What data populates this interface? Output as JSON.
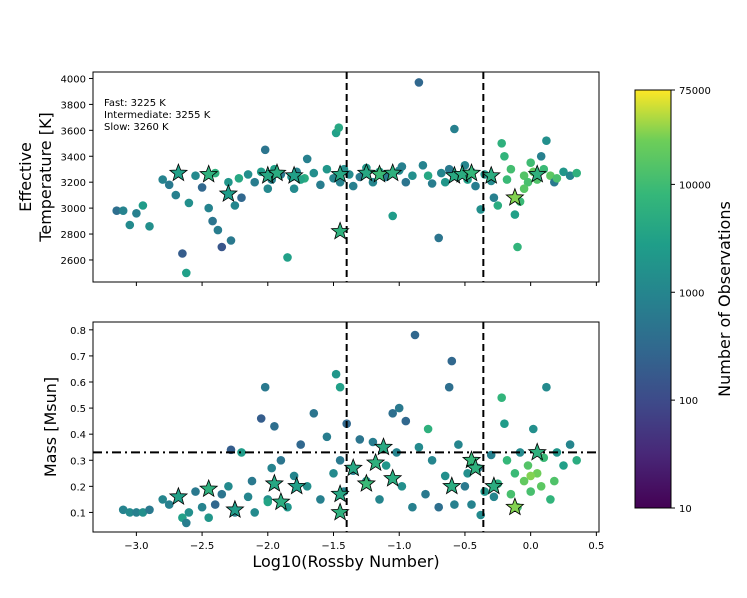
{
  "chart_data": [
    {
      "type": "scatter",
      "panel": "top",
      "ylabel": "Effective\nTemperature [K]",
      "ylim": [
        2430,
        4050
      ],
      "xlim": [
        -3.33,
        0.52
      ],
      "yticks": [
        2600,
        2800,
        3000,
        3200,
        3400,
        3600,
        3800,
        4000
      ],
      "xticks": [
        -3.0,
        -2.5,
        -2.0,
        -1.5,
        -1.0,
        -0.5,
        0.0,
        0.5
      ],
      "vlines": [
        -1.4,
        -0.36
      ],
      "annotation": [
        "Fast: 3225 K",
        "Intermediate: 3255 K",
        "Slow: 3260 K"
      ],
      "points": [
        [
          -3.15,
          2980,
          400
        ],
        [
          -3.1,
          2980,
          900
        ],
        [
          -3.05,
          2870,
          1200
        ],
        [
          -3.0,
          2960,
          800
        ],
        [
          -2.95,
          3020,
          2500
        ],
        [
          -2.9,
          2860,
          1500
        ],
        [
          -2.8,
          3220,
          900
        ],
        [
          -2.75,
          3180,
          600
        ],
        [
          -2.7,
          3100,
          800
        ],
        [
          -2.65,
          2650,
          200
        ],
        [
          -2.62,
          2500,
          3000
        ],
        [
          -2.6,
          3040,
          1500
        ],
        [
          -2.55,
          3250,
          1200
        ],
        [
          -2.5,
          3160,
          300
        ],
        [
          -2.45,
          3000,
          900
        ],
        [
          -2.42,
          2900,
          500
        ],
        [
          -2.38,
          2830,
          700
        ],
        [
          -2.35,
          2700,
          150
        ],
        [
          -2.3,
          3200,
          2000
        ],
        [
          -2.28,
          2750,
          600
        ],
        [
          -2.25,
          3020,
          1000
        ],
        [
          -2.22,
          3230,
          4000
        ],
        [
          -2.2,
          3080,
          300
        ],
        [
          -2.15,
          3260,
          1500
        ],
        [
          -2.1,
          3200,
          700
        ],
        [
          -2.05,
          3280,
          2500
        ],
        [
          -2.02,
          3450,
          500
        ],
        [
          -2.0,
          3150,
          1100
        ],
        [
          -1.97,
          3220,
          900
        ],
        [
          -1.95,
          3300,
          3000
        ],
        [
          -1.9,
          3260,
          600
        ],
        [
          -1.85,
          2620,
          3000
        ],
        [
          -1.82,
          3240,
          1800
        ],
        [
          -1.8,
          3150,
          1200
        ],
        [
          -1.78,
          3280,
          900
        ],
        [
          -1.72,
          3230,
          5000
        ],
        [
          -1.7,
          3380,
          800
        ],
        [
          -1.65,
          3270,
          1400
        ],
        [
          -1.6,
          3180,
          700
        ],
        [
          -1.55,
          3300,
          2000
        ],
        [
          -1.5,
          3230,
          1000
        ],
        [
          -1.48,
          3580,
          3000
        ],
        [
          -1.46,
          3620,
          4000
        ],
        [
          -1.45,
          3200,
          900
        ],
        [
          -1.42,
          3300,
          1500
        ],
        [
          -1.38,
          3260,
          1200
        ],
        [
          -1.35,
          3170,
          800
        ],
        [
          -1.3,
          3240,
          600
        ],
        [
          -1.25,
          3310,
          2000
        ],
        [
          -1.2,
          3200,
          1000
        ],
        [
          -1.15,
          3280,
          3000
        ],
        [
          -1.1,
          3240,
          700
        ],
        [
          -1.05,
          2940,
          2500
        ],
        [
          -1.0,
          3290,
          1200
        ],
        [
          -0.98,
          3320,
          800
        ],
        [
          -0.95,
          3200,
          500
        ],
        [
          -0.9,
          3250,
          1500
        ],
        [
          -0.85,
          3970,
          300
        ],
        [
          -0.82,
          3330,
          900
        ],
        [
          -0.78,
          3250,
          4000
        ],
        [
          -0.75,
          3190,
          700
        ],
        [
          -0.7,
          2770,
          500
        ],
        [
          -0.68,
          3270,
          1000
        ],
        [
          -0.65,
          3200,
          2000
        ],
        [
          -0.62,
          3300,
          600
        ],
        [
          -0.58,
          3610,
          800
        ],
        [
          -0.55,
          3250,
          1300
        ],
        [
          -0.5,
          3330,
          1000
        ],
        [
          -0.48,
          3220,
          3000
        ],
        [
          -0.45,
          3280,
          900
        ],
        [
          -0.42,
          3170,
          700
        ],
        [
          -0.38,
          2990,
          1500
        ],
        [
          -0.35,
          3260,
          2000
        ],
        [
          -0.3,
          3210,
          1200
        ],
        [
          -0.28,
          3080,
          800
        ],
        [
          -0.25,
          3020,
          5000
        ],
        [
          -0.22,
          3500,
          6000
        ],
        [
          -0.2,
          3400,
          7000
        ],
        [
          -0.18,
          3220,
          9000
        ],
        [
          -0.15,
          3300,
          11000
        ],
        [
          -0.12,
          2950,
          3000
        ],
        [
          -0.1,
          2700,
          7000
        ],
        [
          -0.08,
          3050,
          9000
        ],
        [
          -0.05,
          3250,
          15000
        ],
        [
          -0.02,
          3200,
          12000
        ],
        [
          0.0,
          3350,
          10000
        ],
        [
          0.02,
          3280,
          20000
        ],
        [
          0.05,
          3220,
          14000
        ],
        [
          0.08,
          3400,
          800
        ],
        [
          0.1,
          3300,
          9000
        ],
        [
          0.12,
          3520,
          1500
        ],
        [
          0.15,
          3250,
          18000
        ],
        [
          0.18,
          3200,
          600
        ],
        [
          0.2,
          3230,
          12000
        ],
        [
          0.25,
          3280,
          2000
        ],
        [
          0.3,
          3250,
          1000
        ],
        [
          0.35,
          3270,
          6000
        ],
        [
          -1.75,
          3220,
          3500
        ],
        [
          -2.4,
          3270,
          6000
        ],
        [
          -0.05,
          3150,
          16000
        ]
      ],
      "stars": [
        [
          -2.68,
          3270,
          3000
        ],
        [
          -2.45,
          3260,
          6000
        ],
        [
          -2.3,
          3110,
          2500
        ],
        [
          -2.0,
          3250,
          4000
        ],
        [
          -1.93,
          3270,
          5000
        ],
        [
          -1.8,
          3250,
          3000
        ],
        [
          -1.45,
          3260,
          4000
        ],
        [
          -1.45,
          2820,
          6000
        ],
        [
          -1.25,
          3270,
          4000
        ],
        [
          -1.15,
          3260,
          9000
        ],
        [
          -1.05,
          3270,
          6000
        ],
        [
          -0.58,
          3250,
          4500
        ],
        [
          -0.52,
          3260,
          5000
        ],
        [
          -0.45,
          3270,
          8000
        ],
        [
          -0.3,
          3250,
          5000
        ],
        [
          -0.12,
          3080,
          30000
        ],
        [
          0.05,
          3260,
          6000
        ]
      ]
    },
    {
      "type": "scatter",
      "panel": "bottom",
      "ylabel": "Mass [Msun]",
      "xlabel": "Log10(Rossby Number)",
      "ylim": [
        0.025,
        0.83
      ],
      "xlim": [
        -3.33,
        0.52
      ],
      "yticks": [
        0.1,
        0.2,
        0.3,
        0.4,
        0.5,
        0.6,
        0.7,
        0.8
      ],
      "ytick_labels": [
        "0.1",
        "0.2",
        "0.3",
        "0.4",
        "0.5",
        "0.6",
        "0.7",
        "0.8"
      ],
      "xticks": [
        -3.0,
        -2.5,
        -2.0,
        -1.5,
        -1.0,
        -0.5,
        0.0,
        0.5
      ],
      "xtick_labels": [
        "−3.0",
        "−2.5",
        "−2.0",
        "−1.5",
        "−1.0",
        "−0.5",
        "0.0",
        "0.5"
      ],
      "vlines": [
        -1.4,
        -0.36
      ],
      "hline": 0.33,
      "points": [
        [
          -3.1,
          0.11,
          900
        ],
        [
          -3.05,
          0.1,
          1200
        ],
        [
          -3.0,
          0.1,
          800
        ],
        [
          -2.95,
          0.1,
          1500
        ],
        [
          -2.9,
          0.11,
          600
        ],
        [
          -2.8,
          0.15,
          1000
        ],
        [
          -2.75,
          0.13,
          800
        ],
        [
          -2.65,
          0.08,
          3000
        ],
        [
          -2.62,
          0.06,
          700
        ],
        [
          -2.6,
          0.1,
          1500
        ],
        [
          -2.55,
          0.18,
          600
        ],
        [
          -2.5,
          0.12,
          900
        ],
        [
          -2.45,
          0.08,
          2000
        ],
        [
          -2.4,
          0.13,
          300
        ],
        [
          -2.35,
          0.17,
          500
        ],
        [
          -2.3,
          0.2,
          1200
        ],
        [
          -2.28,
          0.34,
          200
        ],
        [
          -2.25,
          0.1,
          800
        ],
        [
          -2.2,
          0.33,
          2500
        ],
        [
          -2.15,
          0.16,
          1000
        ],
        [
          -2.12,
          0.22,
          600
        ],
        [
          -2.1,
          0.1,
          1200
        ],
        [
          -2.05,
          0.46,
          200
        ],
        [
          -2.02,
          0.58,
          600
        ],
        [
          -2.0,
          0.15,
          1500
        ],
        [
          -1.97,
          0.27,
          900
        ],
        [
          -1.95,
          0.43,
          400
        ],
        [
          -1.9,
          0.3,
          500
        ],
        [
          -1.85,
          0.12,
          2000
        ],
        [
          -1.8,
          0.24,
          1000
        ],
        [
          -1.75,
          0.36,
          300
        ],
        [
          -1.7,
          0.2,
          1500
        ],
        [
          -1.65,
          0.48,
          500
        ],
        [
          -1.6,
          0.15,
          800
        ],
        [
          -1.55,
          0.39,
          700
        ],
        [
          -1.5,
          0.25,
          1200
        ],
        [
          -1.48,
          0.63,
          2000
        ],
        [
          -1.45,
          0.58,
          3000
        ],
        [
          -1.45,
          0.3,
          600
        ],
        [
          -1.42,
          0.18,
          900
        ],
        [
          -1.4,
          0.44,
          300
        ],
        [
          -1.35,
          0.26,
          800
        ],
        [
          -1.3,
          0.38,
          500
        ],
        [
          -1.25,
          0.22,
          1300
        ],
        [
          -1.2,
          0.37,
          700
        ],
        [
          -1.15,
          0.15,
          1000
        ],
        [
          -1.1,
          0.28,
          2000
        ],
        [
          -1.05,
          0.48,
          400
        ],
        [
          -1.02,
          0.33,
          900
        ],
        [
          -1.0,
          0.5,
          600
        ],
        [
          -0.98,
          0.2,
          1500
        ],
        [
          -0.95,
          0.45,
          300
        ],
        [
          -0.9,
          0.12,
          800
        ],
        [
          -0.88,
          0.78,
          300
        ],
        [
          -0.85,
          0.35,
          1200
        ],
        [
          -0.8,
          0.17,
          600
        ],
        [
          -0.78,
          0.42,
          6000
        ],
        [
          -0.75,
          0.3,
          1000
        ],
        [
          -0.7,
          0.12,
          400
        ],
        [
          -0.65,
          0.24,
          1500
        ],
        [
          -0.62,
          0.58,
          400
        ],
        [
          -0.6,
          0.68,
          300
        ],
        [
          -0.58,
          0.13,
          800
        ],
        [
          -0.55,
          0.36,
          1000
        ],
        [
          -0.5,
          0.2,
          600
        ],
        [
          -0.48,
          0.25,
          1500
        ],
        [
          -0.45,
          0.13,
          900
        ],
        [
          -0.4,
          0.27,
          700
        ],
        [
          -0.38,
          0.09,
          1200
        ],
        [
          -0.35,
          0.18,
          2000
        ],
        [
          -0.3,
          0.32,
          800
        ],
        [
          -0.28,
          0.16,
          1000
        ],
        [
          -0.25,
          0.21,
          5000
        ],
        [
          -0.22,
          0.54,
          7000
        ],
        [
          -0.2,
          0.44,
          2500
        ],
        [
          -0.18,
          0.3,
          8000
        ],
        [
          -0.15,
          0.17,
          12000
        ],
        [
          -0.12,
          0.25,
          9000
        ],
        [
          -0.1,
          0.12,
          10000
        ],
        [
          -0.08,
          0.33,
          1200
        ],
        [
          -0.05,
          0.22,
          20000
        ],
        [
          -0.02,
          0.28,
          15000
        ],
        [
          0.0,
          0.18,
          12000
        ],
        [
          0.02,
          0.42,
          1500
        ],
        [
          0.05,
          0.25,
          25000
        ],
        [
          0.08,
          0.2,
          18000
        ],
        [
          0.1,
          0.31,
          9000
        ],
        [
          0.12,
          0.58,
          1200
        ],
        [
          0.15,
          0.15,
          7000
        ],
        [
          0.18,
          0.22,
          14000
        ],
        [
          0.2,
          0.33,
          2000
        ],
        [
          0.25,
          0.28,
          3000
        ],
        [
          0.3,
          0.36,
          1000
        ],
        [
          0.35,
          0.3,
          5000
        ],
        [
          -2.0,
          0.14,
          3500
        ],
        [
          0.0,
          0.24,
          30000
        ]
      ],
      "stars": [
        [
          -2.68,
          0.16,
          3000
        ],
        [
          -2.45,
          0.19,
          6000
        ],
        [
          -2.25,
          0.11,
          2500
        ],
        [
          -1.95,
          0.21,
          4000
        ],
        [
          -1.9,
          0.14,
          5000
        ],
        [
          -1.78,
          0.2,
          3000
        ],
        [
          -1.45,
          0.17,
          4000
        ],
        [
          -1.45,
          0.1,
          6000
        ],
        [
          -1.35,
          0.27,
          4000
        ],
        [
          -1.25,
          0.21,
          9000
        ],
        [
          -1.18,
          0.29,
          6000
        ],
        [
          -1.12,
          0.35,
          4500
        ],
        [
          -1.05,
          0.23,
          5000
        ],
        [
          -0.6,
          0.2,
          5000
        ],
        [
          -0.45,
          0.3,
          8000
        ],
        [
          -0.42,
          0.27,
          6000
        ],
        [
          -0.28,
          0.2,
          5000
        ],
        [
          -0.12,
          0.12,
          30000
        ],
        [
          0.05,
          0.33,
          6000
        ]
      ]
    }
  ],
  "colorbar": {
    "label": "Number of Observations",
    "min": 10,
    "max": 75000,
    "ticks": [
      10,
      100,
      1000,
      10000,
      75000
    ],
    "tick_labels": [
      "10",
      "100",
      "1000",
      "10000",
      "75000"
    ],
    "colormap": "viridis"
  }
}
